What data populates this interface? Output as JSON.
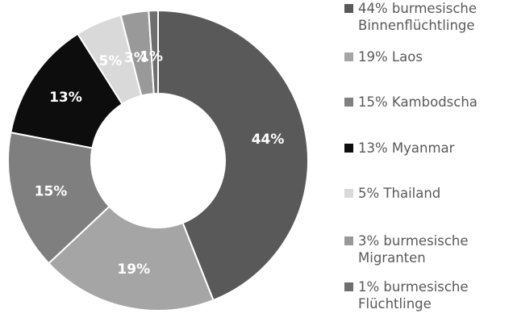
{
  "chart_data": {
    "type": "pie",
    "donut": true,
    "title": "",
    "series": [
      {
        "label": "44%",
        "legend_lines": [
          "44% burmesische",
          "Binnenflüchtlinge"
        ],
        "value": 44,
        "color": "#595959"
      },
      {
        "label": "19%",
        "legend_lines": [
          "19% Laos"
        ],
        "value": 19,
        "color": "#a5a5a5"
      },
      {
        "label": "15%",
        "legend_lines": [
          "15% Kambodscha"
        ],
        "value": 15,
        "color": "#7f7f7f"
      },
      {
        "label": "13%",
        "legend_lines": [
          "13% Myanmar"
        ],
        "value": 13,
        "color": "#0d0d0d"
      },
      {
        "label": "5%",
        "legend_lines": [
          "5% Thailand"
        ],
        "value": 5,
        "color": "#d9d9d9"
      },
      {
        "label": "3%",
        "legend_lines": [
          "3% burmesische",
          "Migranten"
        ],
        "value": 3,
        "color": "#999999"
      },
      {
        "label": "1%",
        "legend_lines": [
          "1% burmesische",
          "Flüchtlinge"
        ],
        "value": 1,
        "color": "#6e6e6e"
      }
    ],
    "legend_position": "right"
  }
}
